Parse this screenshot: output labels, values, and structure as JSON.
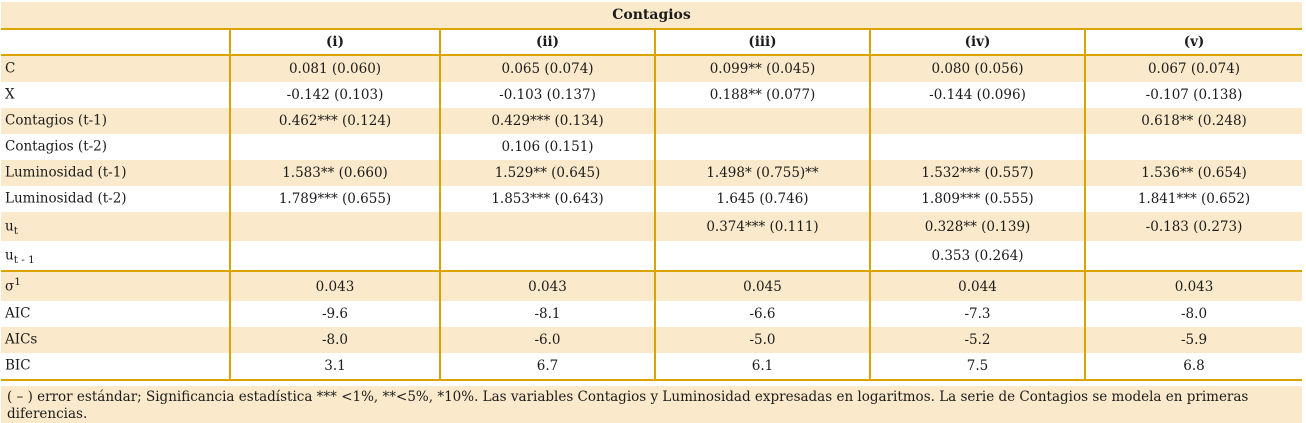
{
  "title": "Contagios",
  "columns": [
    "(i)",
    "(ii)",
    "(iii)",
    "(iv)",
    "(v)"
  ],
  "rows": [
    {
      "label": {
        "text": "C"
      },
      "values": [
        "0.081 (0.060)",
        "0.065 (0.074)",
        "0.099** (0.045)",
        "0.080 (0.056)",
        "0.067 (0.074)"
      ]
    },
    {
      "label": {
        "text": "X"
      },
      "values": [
        "-0.142 (0.103)",
        "-0.103 (0.137)",
        "0.188** (0.077)",
        "-0.144 (0.096)",
        "-0.107 (0.138)"
      ]
    },
    {
      "label": {
        "text": "Contagios (t-1)"
      },
      "values": [
        "0.462*** (0.124)",
        "0.429*** (0.134)",
        "",
        "",
        "0.618** (0.248)"
      ]
    },
    {
      "label": {
        "text": "Contagios (t-2)"
      },
      "values": [
        "",
        "0.106 (0.151)",
        "",
        "",
        ""
      ]
    },
    {
      "label": {
        "text": "Luminosidad (t-1)"
      },
      "values": [
        "1.583** (0.660)",
        "1.529** (0.645)",
        "1.498* (0.755)**",
        "1.532*** (0.557)",
        "1.536** (0.654)"
      ]
    },
    {
      "label": {
        "text": "Luminosidad (t-2)"
      },
      "values": [
        "1.789*** (0.655)",
        "1.853*** (0.643)",
        "1.645 (0.746)",
        "1.809*** (0.555)",
        "1.841*** (0.652)"
      ]
    },
    {
      "label": {
        "text": "u",
        "sub": "t"
      },
      "values": [
        "",
        "",
        "0.374*** (0.111)",
        "0.328** (0.139)",
        "-0.183 (0.273)"
      ]
    },
    {
      "label": {
        "text": "u",
        "sub": "t - 1"
      },
      "values": [
        "",
        "",
        "",
        "0.353 (0.264)",
        ""
      ]
    },
    {
      "label": {
        "text": "σ",
        "sup": "1"
      },
      "values": [
        "0.043",
        "0.043",
        "0.045",
        "0.044",
        "0.043"
      ]
    },
    {
      "label": {
        "text": "AIC"
      },
      "values": [
        "-9.6",
        "-8.1",
        "-6.6",
        "-7.3",
        "-8.0"
      ]
    },
    {
      "label": {
        "text": "AICs"
      },
      "values": [
        "-8.0",
        "-6.0",
        "-5.0",
        "-5.2",
        "-5.9"
      ]
    },
    {
      "label": {
        "text": "BIC"
      },
      "values": [
        "3.1",
        "6.7",
        "6.1",
        "7.5",
        "6.8"
      ]
    }
  ],
  "footnote": "( – ) error estándar; Significancia estadística *** <1%, **<5%, *10%. Las variables Contagios y Luminosidad expresadas en logaritmos. La serie de Contagios se modela en primeras diferencias.",
  "colors": {
    "row_tint": "#faeacb",
    "border_gold": "#d9a400"
  }
}
